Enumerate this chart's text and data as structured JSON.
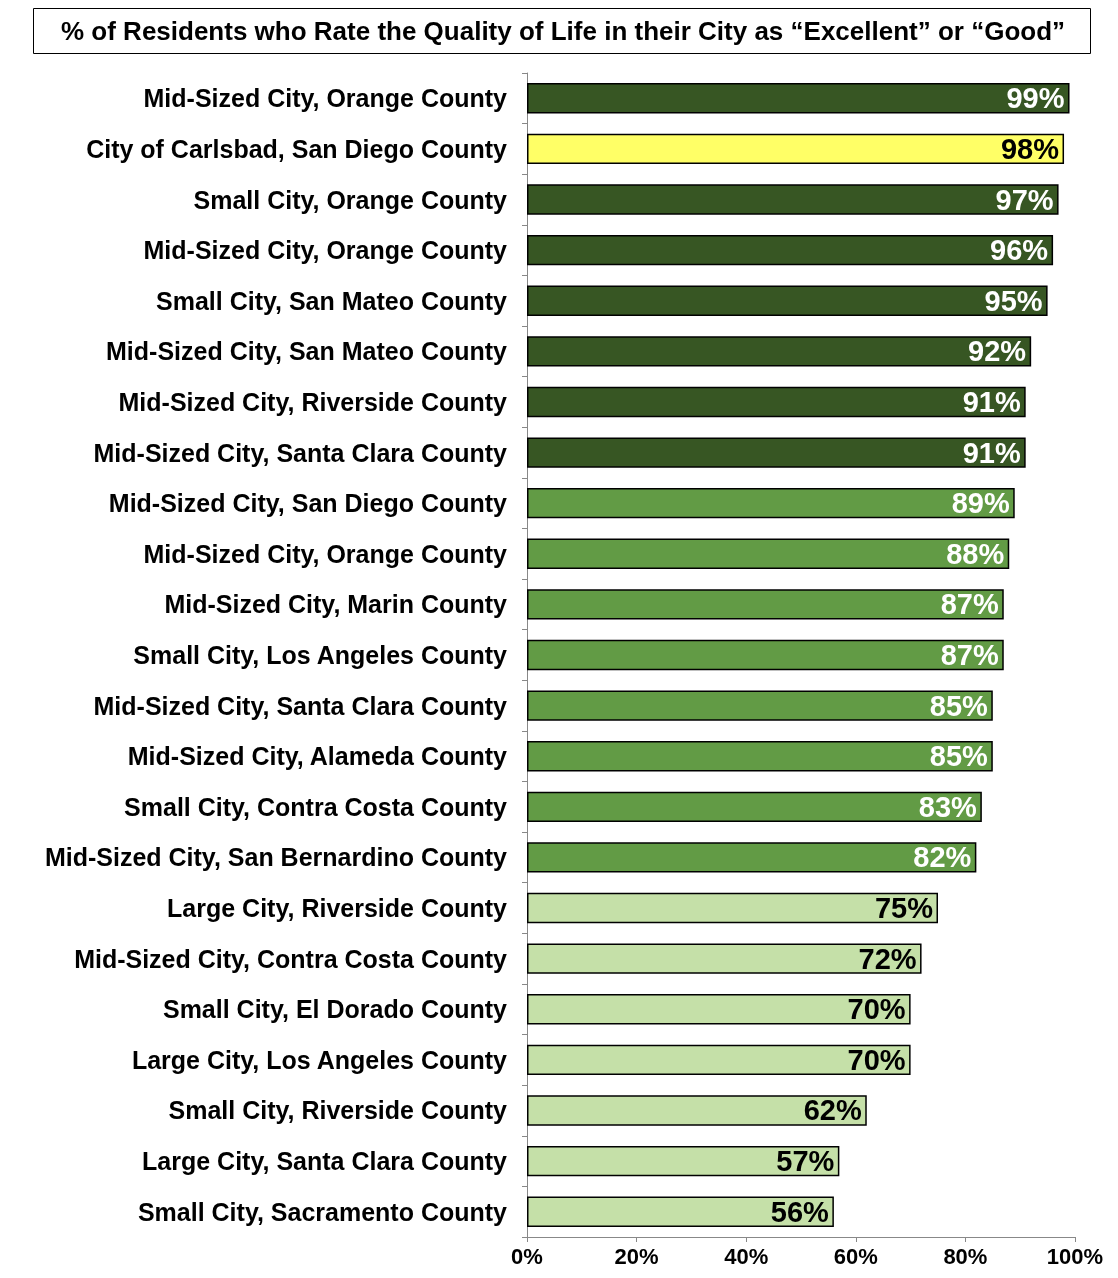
{
  "chart_data": {
    "type": "bar",
    "orientation": "horizontal",
    "title": "% of Residents who Rate the Quality of Life in their City as “Excellent” or “Good”",
    "categories": [
      "Mid-Sized City, Orange County",
      "City of Carlsbad, San Diego County",
      "Small City, Orange County",
      "Mid-Sized City, Orange County",
      "Small City, San Mateo County",
      "Mid-Sized City, San Mateo County",
      "Mid-Sized City, Riverside County",
      "Mid-Sized City, Santa Clara County",
      "Mid-Sized City, San Diego County",
      "Mid-Sized City, Orange County",
      "Mid-Sized City, Marin County",
      "Small City, Los Angeles County",
      "Mid-Sized City, Santa Clara County",
      "Mid-Sized City, Alameda County",
      "Small City, Contra Costa County",
      "Mid-Sized City, San Bernardino County",
      "Large City, Riverside County",
      "Mid-Sized City, Contra Costa County",
      "Small City, El Dorado County",
      "Large City, Los Angeles County",
      "Small City, Riverside County",
      "Large City, Santa Clara County",
      "Small City, Sacramento County"
    ],
    "values": [
      99,
      98,
      97,
      96,
      95,
      92,
      91,
      91,
      89,
      88,
      87,
      87,
      85,
      85,
      83,
      82,
      75,
      72,
      70,
      70,
      62,
      57,
      56
    ],
    "value_labels": [
      "99%",
      "98%",
      "97%",
      "96%",
      "95%",
      "92%",
      "91%",
      "91%",
      "89%",
      "88%",
      "87%",
      "87%",
      "85%",
      "85%",
      "83%",
      "82%",
      "75%",
      "72%",
      "70%",
      "70%",
      "62%",
      "57%",
      "56%"
    ],
    "colors": [
      "#375623",
      "#ffff66",
      "#375623",
      "#375623",
      "#375623",
      "#375623",
      "#375623",
      "#375623",
      "#629b45",
      "#629b45",
      "#629b45",
      "#629b45",
      "#629b45",
      "#629b45",
      "#629b45",
      "#629b45",
      "#c5e0a8",
      "#c5e0a8",
      "#c5e0a8",
      "#c5e0a8",
      "#c5e0a8",
      "#c5e0a8",
      "#c5e0a8"
    ],
    "xlim": [
      0,
      100
    ],
    "xticks": [
      {
        "value": 0,
        "label": "0%"
      },
      {
        "value": 20,
        "label": "20%"
      },
      {
        "value": 40,
        "label": "40%"
      },
      {
        "value": 60,
        "label": "60%"
      },
      {
        "value": 80,
        "label": "80%"
      },
      {
        "value": 100,
        "label": "100%"
      }
    ],
    "grid": false
  }
}
